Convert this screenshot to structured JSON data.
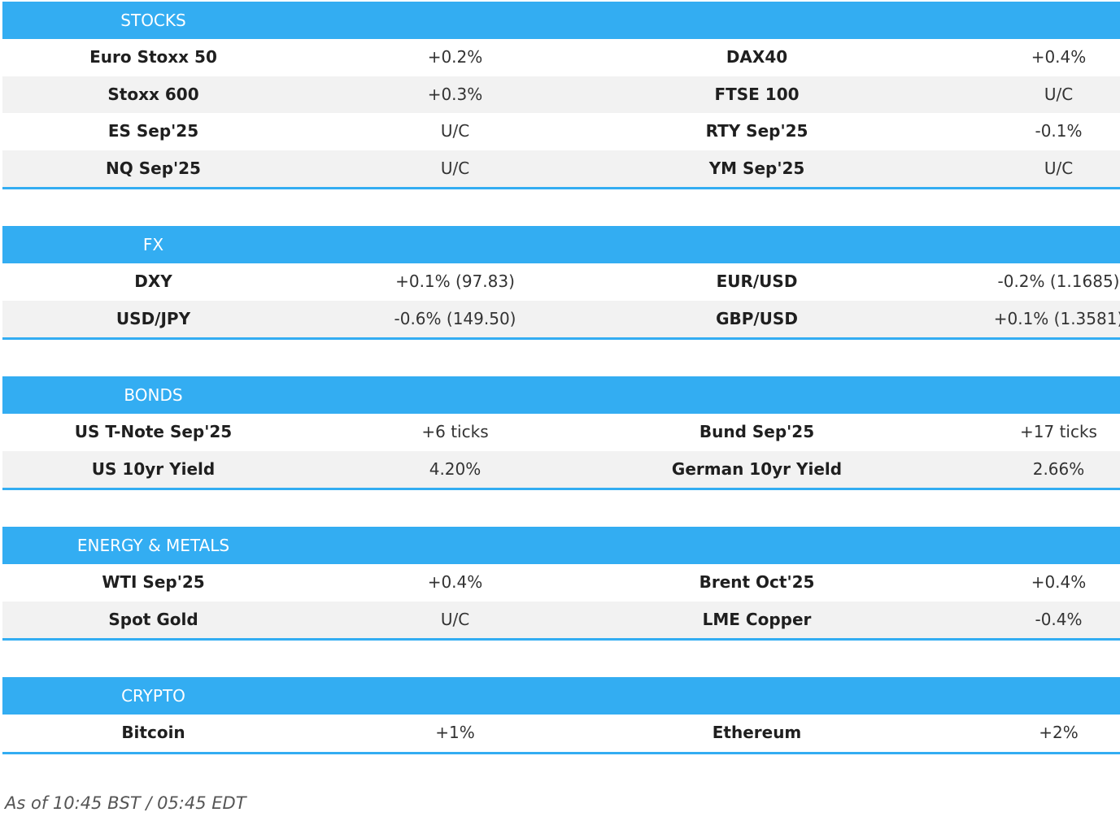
{
  "sections": [
    {
      "title": "STOCKS",
      "rows": [
        [
          "Euro Stoxx 50",
          "+0.2%",
          "DAX40",
          "+0.4%"
        ],
        [
          "Stoxx 600",
          "+0.3%",
          "FTSE 100",
          "U/C"
        ],
        [
          "ES Sep'25",
          "U/C",
          "RTY Sep'25",
          "-0.1%"
        ],
        [
          "NQ Sep'25",
          "U/C",
          "YM Sep'25",
          "U/C"
        ]
      ]
    },
    {
      "title": "FX",
      "rows": [
        [
          "DXY",
          "+0.1% (97.83)",
          "EUR/USD",
          "-0.2% (1.1685)"
        ],
        [
          "USD/JPY",
          "-0.6% (149.50)",
          "GBP/USD",
          "+0.1% (1.3581)"
        ]
      ]
    },
    {
      "title": "BONDS",
      "rows": [
        [
          "US T-Note Sep'25",
          "+6 ticks",
          "Bund Sep'25",
          "+17 ticks"
        ],
        [
          "US 10yr Yield",
          "4.20%",
          "German 10yr Yield",
          "2.66%"
        ]
      ]
    },
    {
      "title": "ENERGY & METALS",
      "rows": [
        [
          "WTI Sep'25",
          "+0.4%",
          "Brent Oct'25",
          "+0.4%"
        ],
        [
          "Spot Gold",
          "U/C",
          "LME Copper",
          "-0.4%"
        ]
      ]
    },
    {
      "title": "CRYPTO",
      "rows": [
        [
          "Bitcoin",
          "+1%",
          "Ethereum",
          "+2%"
        ]
      ]
    }
  ],
  "note": "As of 10:45 BST / 05:45 EDT"
}
